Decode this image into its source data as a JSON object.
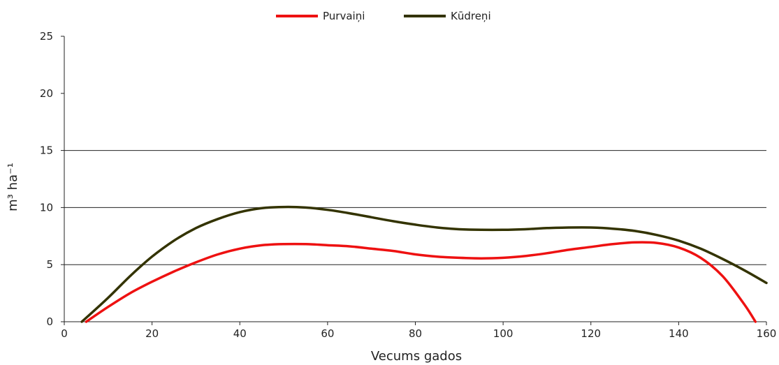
{
  "chart_data": {
    "type": "line",
    "title": "",
    "xlabel": "Vecums gados",
    "ylabel": "m³ ha⁻¹",
    "xlim": [
      0,
      160
    ],
    "ylim": [
      0,
      25
    ],
    "x_ticks": [
      0,
      20,
      40,
      60,
      80,
      100,
      120,
      140,
      160
    ],
    "y_ticks": [
      0,
      5,
      10,
      15,
      20,
      25
    ],
    "grid_y": [
      5,
      10,
      15
    ],
    "legend_position": "top-center",
    "series": [
      {
        "name": "Purvaiņi",
        "color": "#ee1111",
        "points": [
          [
            5,
            0
          ],
          [
            10,
            1.3
          ],
          [
            15,
            2.5
          ],
          [
            20,
            3.5
          ],
          [
            25,
            4.4
          ],
          [
            30,
            5.2
          ],
          [
            35,
            5.9
          ],
          [
            40,
            6.4
          ],
          [
            45,
            6.7
          ],
          [
            50,
            6.8
          ],
          [
            55,
            6.8
          ],
          [
            60,
            6.7
          ],
          [
            65,
            6.6
          ],
          [
            70,
            6.4
          ],
          [
            75,
            6.2
          ],
          [
            80,
            5.9
          ],
          [
            85,
            5.7
          ],
          [
            90,
            5.6
          ],
          [
            95,
            5.55
          ],
          [
            100,
            5.6
          ],
          [
            105,
            5.75
          ],
          [
            110,
            6.0
          ],
          [
            115,
            6.3
          ],
          [
            120,
            6.55
          ],
          [
            125,
            6.8
          ],
          [
            130,
            6.95
          ],
          [
            135,
            6.9
          ],
          [
            140,
            6.5
          ],
          [
            145,
            5.6
          ],
          [
            150,
            4.0
          ],
          [
            155,
            1.5
          ],
          [
            157.5,
            0
          ]
        ]
      },
      {
        "name": "Kūdreņi",
        "color": "#333300",
        "points": [
          [
            4,
            0
          ],
          [
            10,
            2.1
          ],
          [
            15,
            4.0
          ],
          [
            20,
            5.7
          ],
          [
            25,
            7.1
          ],
          [
            30,
            8.2
          ],
          [
            35,
            9.0
          ],
          [
            40,
            9.6
          ],
          [
            45,
            9.95
          ],
          [
            50,
            10.05
          ],
          [
            55,
            10.0
          ],
          [
            60,
            9.8
          ],
          [
            65,
            9.5
          ],
          [
            70,
            9.15
          ],
          [
            75,
            8.8
          ],
          [
            80,
            8.5
          ],
          [
            85,
            8.25
          ],
          [
            90,
            8.1
          ],
          [
            95,
            8.05
          ],
          [
            100,
            8.05
          ],
          [
            105,
            8.1
          ],
          [
            110,
            8.2
          ],
          [
            115,
            8.25
          ],
          [
            120,
            8.25
          ],
          [
            125,
            8.15
          ],
          [
            130,
            7.95
          ],
          [
            135,
            7.6
          ],
          [
            140,
            7.1
          ],
          [
            145,
            6.4
          ],
          [
            150,
            5.5
          ],
          [
            155,
            4.5
          ],
          [
            160,
            3.4
          ]
        ]
      }
    ]
  }
}
